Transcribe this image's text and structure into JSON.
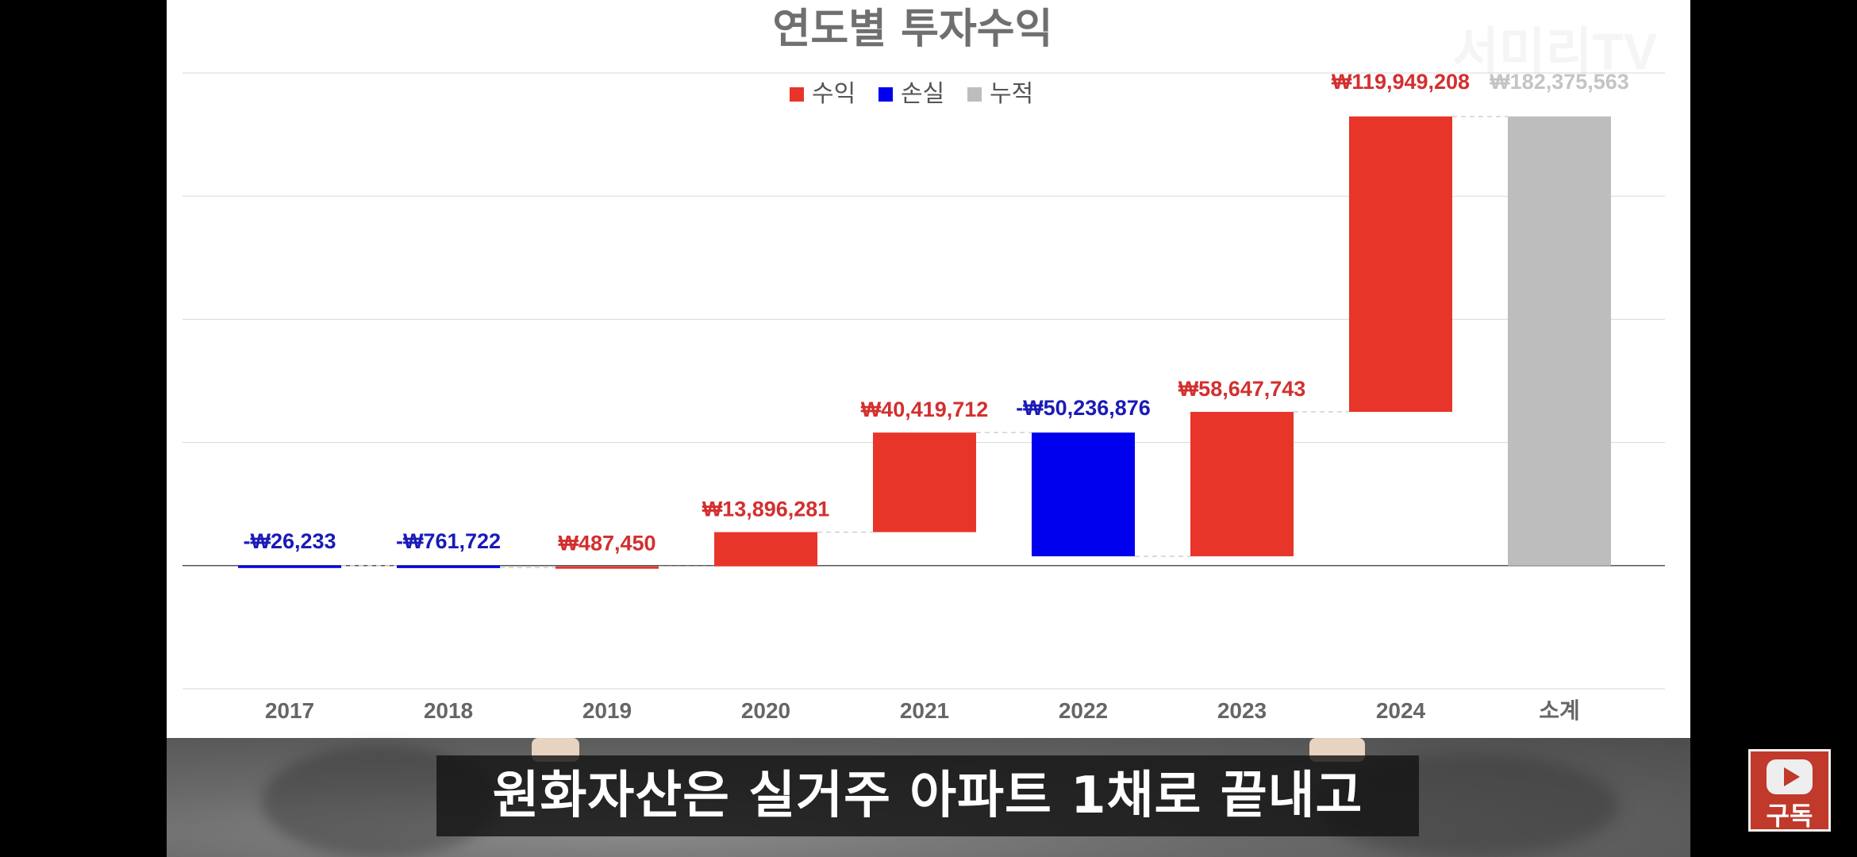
{
  "chart_data": {
    "type": "waterfall",
    "title": "연도별 투자수익",
    "legend": [
      {
        "label": "수익",
        "color": "#e8352a"
      },
      {
        "label": "손실",
        "color": "#0000ee"
      },
      {
        "label": "누적",
        "color": "#bdbdbd"
      }
    ],
    "legend_position": "top-center",
    "categories": [
      "2017",
      "2018",
      "2019",
      "2020",
      "2021",
      "2022",
      "2023",
      "2024",
      "소계"
    ],
    "values": [
      -26233,
      -761722,
      487450,
      13896281,
      40419712,
      -50236876,
      58647743,
      119949208,
      182375563
    ],
    "data_labels": [
      "-₩26,233",
      "-₩761,722",
      "₩487,450",
      "₩13,896,281",
      "₩40,419,712",
      "-₩50,236,876",
      "₩58,647,743",
      "₩119,949,208",
      "₩182,375,563"
    ],
    "kinds": [
      "loss",
      "loss",
      "gain",
      "gain",
      "gain",
      "loss",
      "gain",
      "gain",
      "total"
    ],
    "ylim": [
      -50000000,
      200000000
    ],
    "grid": true,
    "colors": {
      "gain": "#e8352a",
      "loss": "#0000ee",
      "total": "#bdbdbd",
      "label_gain": "#d32f2f",
      "label_loss": "#1a1ab8",
      "label_total": "#c4c4c4"
    }
  },
  "video": {
    "subtitle": "원화자산은 실거주 아파트 1채로 끝내고",
    "subscribe_label": "구독",
    "watermark": "서미리TV"
  }
}
